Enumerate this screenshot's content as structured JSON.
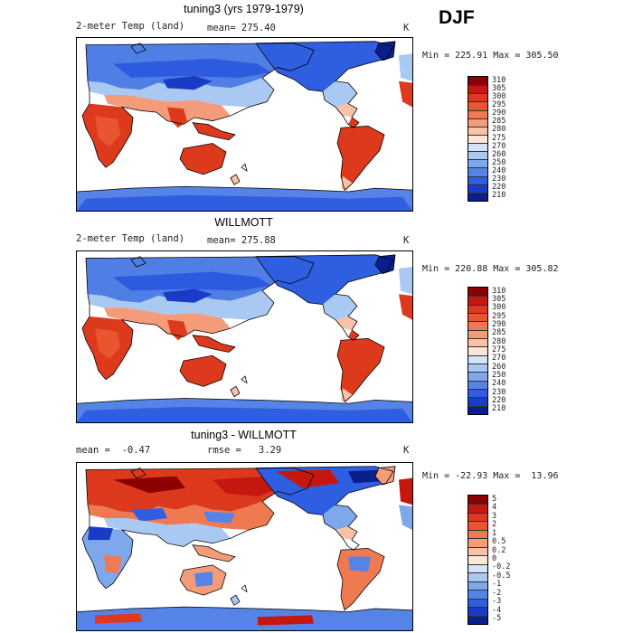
{
  "season": "DJF",
  "panels": [
    {
      "title": "tuning3 (yrs 1979-1979)",
      "left_label": "2-meter Temp (land)",
      "mid_label": "mean= 275.40",
      "units": "K",
      "minmax": "Min = 225.91 Max = 305.50",
      "levels": [
        "310",
        "305",
        "300",
        "295",
        "290",
        "285",
        "280",
        "275",
        "270",
        "260",
        "250",
        "240",
        "230",
        "220",
        "210"
      ],
      "colors": [
        "#8b0000",
        "#c4170f",
        "#dd3a1d",
        "#e9552e",
        "#ef7a52",
        "#f49c7a",
        "#f8c2a6",
        "#fbe6d8",
        "#d4e3f8",
        "#a9c8f2",
        "#7fa8ec",
        "#5584e6",
        "#2f5ee0",
        "#1a3bc6",
        "#0a1f8e"
      ]
    },
    {
      "title": "WILLMOTT",
      "left_label": "2-meter Temp (land)",
      "mid_label": "mean= 275.88",
      "units": "K",
      "minmax": "Min = 220.88 Max = 305.82",
      "levels": [
        "310",
        "305",
        "300",
        "295",
        "290",
        "285",
        "280",
        "275",
        "270",
        "260",
        "250",
        "240",
        "230",
        "220",
        "210"
      ],
      "colors": [
        "#8b0000",
        "#c4170f",
        "#dd3a1d",
        "#e9552e",
        "#ef7a52",
        "#f49c7a",
        "#f8c2a6",
        "#fbe6d8",
        "#d4e3f8",
        "#a9c8f2",
        "#7fa8ec",
        "#5584e6",
        "#2f5ee0",
        "#1a3bc6",
        "#0a1f8e"
      ]
    },
    {
      "title": "tuning3 - WILLMOTT",
      "left_label": "mean =  -0.47",
      "mid_label": "rmse =   3.29",
      "units": "K",
      "minmax": "Min = -22.93 Max =  13.96",
      "levels": [
        "5",
        "4",
        "3",
        "2",
        "1",
        "0.5",
        "0.2",
        "0",
        "-0.2",
        "-0.5",
        "-1",
        "-2",
        "-3",
        "-4",
        "-5"
      ],
      "colors": [
        "#8b0000",
        "#c4170f",
        "#dd3a1d",
        "#e9552e",
        "#ef7a52",
        "#f49c7a",
        "#f8c2a6",
        "#fbe6d8",
        "#d4e3f8",
        "#a9c8f2",
        "#7fa8ec",
        "#5584e6",
        "#2f5ee0",
        "#1a3bc6",
        "#0a1f8e"
      ]
    }
  ]
}
